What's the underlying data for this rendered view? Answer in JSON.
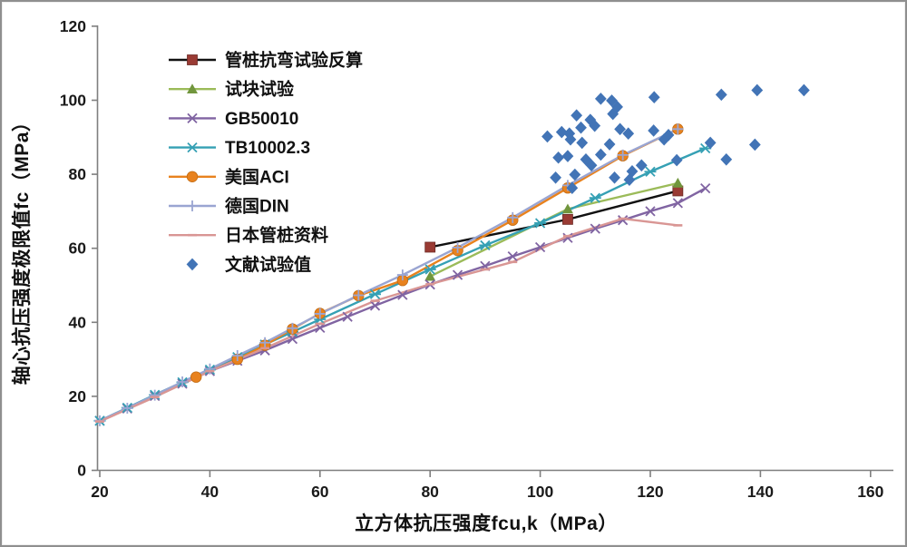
{
  "chart_data": {
    "type": "line",
    "title": "",
    "xlabel": "立方体抗压强度fcu,k（MPa）",
    "ylabel": "轴心抗压强度极限值fc（MPa）",
    "xlim": [
      20,
      160
    ],
    "ylim": [
      0,
      120
    ],
    "xticks": [
      20,
      40,
      60,
      80,
      100,
      120,
      140,
      160
    ],
    "yticks": [
      0,
      20,
      40,
      60,
      80,
      100,
      120
    ],
    "grid": false,
    "legend_position": "upper-left-inside",
    "axis_color": "#7f7f7f",
    "tick_label_color": "#1a1a1a",
    "series": [
      {
        "name": "管桩抗弯试验反算",
        "type": "line",
        "line_color": "#111111",
        "marker": "square",
        "marker_color": "#9a3b34",
        "points": [
          [
            80,
            60.3
          ],
          [
            105,
            67.8
          ],
          [
            125,
            75.5
          ]
        ]
      },
      {
        "name": "试块试验",
        "type": "line",
        "line_color": "#9bbb59",
        "marker": "triangle",
        "marker_color": "#71963d",
        "points": [
          [
            80,
            52.4
          ],
          [
            105,
            70.6
          ],
          [
            125,
            77.6
          ]
        ]
      },
      {
        "name": "GB50010",
        "type": "line",
        "line_color": "#8064a2",
        "marker": "x",
        "marker_color": "#8064a2",
        "points": [
          [
            20,
            13.4
          ],
          [
            25,
            16.7
          ],
          [
            30,
            20.1
          ],
          [
            35,
            23.4
          ],
          [
            40,
            26.8
          ],
          [
            45,
            29.6
          ],
          [
            50,
            32.4
          ],
          [
            55,
            35.5
          ],
          [
            60,
            38.5
          ],
          [
            65,
            41.5
          ],
          [
            70,
            44.5
          ],
          [
            75,
            47.4
          ],
          [
            80,
            50.2
          ],
          [
            85,
            52.8
          ],
          [
            90,
            55.2
          ],
          [
            95,
            57.8
          ],
          [
            100,
            60.3
          ],
          [
            105,
            62.8
          ],
          [
            110,
            65.3
          ],
          [
            115,
            67.6
          ],
          [
            120,
            70.0
          ],
          [
            125,
            72.2
          ],
          [
            130,
            76.2
          ]
        ]
      },
      {
        "name": "TB10002.3",
        "type": "line",
        "line_color": "#35a0b4",
        "marker": "asterisk",
        "marker_color": "#35a0b4",
        "points": [
          [
            20,
            13.4
          ],
          [
            25,
            16.9
          ],
          [
            30,
            20.4
          ],
          [
            35,
            23.8
          ],
          [
            40,
            27.2
          ],
          [
            45,
            30.6
          ],
          [
            50,
            34.0
          ],
          [
            55,
            37.4
          ],
          [
            60,
            40.8
          ],
          [
            70,
            47.6
          ],
          [
            80,
            54.3
          ],
          [
            90,
            60.8
          ],
          [
            100,
            66.8
          ],
          [
            110,
            73.6
          ],
          [
            120,
            80.7
          ],
          [
            130,
            87.0
          ]
        ]
      },
      {
        "name": "美国ACI",
        "type": "line",
        "line_color": "#e8821e",
        "marker": "circle",
        "marker_color": "#e8821e",
        "points": [
          [
            37.5,
            25.2
          ],
          [
            45,
            30.0
          ],
          [
            50,
            33.8
          ],
          [
            55,
            38.2
          ],
          [
            60,
            42.4
          ],
          [
            67,
            47.2
          ],
          [
            75,
            51.3
          ],
          [
            85,
            59.4
          ],
          [
            95,
            67.6
          ],
          [
            105,
            76.3
          ],
          [
            115,
            85.0
          ],
          [
            125,
            92.2
          ]
        ]
      },
      {
        "name": "德国DIN",
        "type": "line",
        "line_color": "#9aa5d2",
        "marker": "plus",
        "marker_color": "#9aa5d2",
        "points": [
          [
            20,
            13.4
          ],
          [
            25,
            16.8
          ],
          [
            30,
            20.3
          ],
          [
            35,
            23.9
          ],
          [
            40,
            27.4
          ],
          [
            45,
            31.0
          ],
          [
            50,
            34.5
          ],
          [
            55,
            38.4
          ],
          [
            60,
            42.3
          ],
          [
            67,
            47.3
          ],
          [
            75,
            52.8
          ],
          [
            85,
            60.2
          ],
          [
            95,
            68.3
          ],
          [
            105,
            77.0
          ],
          [
            115,
            85.2
          ],
          [
            125,
            92.2
          ]
        ]
      },
      {
        "name": "日本管桩资料",
        "type": "line",
        "line_color": "#d99694",
        "marker": "dash",
        "marker_color": "#d99694",
        "points": [
          [
            20,
            13.2
          ],
          [
            30,
            19.8
          ],
          [
            40,
            26.8
          ],
          [
            50,
            33.0
          ],
          [
            60,
            39.6
          ],
          [
            70,
            45.8
          ],
          [
            80,
            50.3
          ],
          [
            90,
            54.3
          ],
          [
            95,
            56.3
          ],
          [
            105,
            63.3
          ],
          [
            115,
            68.0
          ],
          [
            125,
            66.2
          ]
        ]
      },
      {
        "name": "文献试验值",
        "type": "scatter",
        "marker": "diamond",
        "marker_color": "#4274b6",
        "points": [
          [
            101.3,
            90.2
          ],
          [
            103.9,
            91.4
          ],
          [
            105.3,
            91.0
          ],
          [
            105.5,
            89.4
          ],
          [
            107.4,
            92.6
          ],
          [
            107.6,
            88.5
          ],
          [
            109.1,
            94.7
          ],
          [
            106.6,
            95.9
          ],
          [
            111,
            100.4
          ],
          [
            113,
            99.9
          ],
          [
            120.7,
            100.8
          ],
          [
            113.2,
            96.3
          ],
          [
            114,
            98.2
          ],
          [
            109.9,
            93.1
          ],
          [
            112.6,
            88.1
          ],
          [
            114.5,
            92.2
          ],
          [
            116,
            91.0
          ],
          [
            120.6,
            91.8
          ],
          [
            122.5,
            89.4
          ],
          [
            123.3,
            90.6
          ],
          [
            103.3,
            84.5
          ],
          [
            105,
            84.9
          ],
          [
            108.3,
            84.0
          ],
          [
            109.3,
            82.4
          ],
          [
            111,
            85.3
          ],
          [
            116.7,
            80.8
          ],
          [
            118.4,
            82.4
          ],
          [
            106.3,
            79.9
          ],
          [
            102.8,
            79.1
          ],
          [
            113.5,
            79.1
          ],
          [
            116.2,
            78.5
          ],
          [
            105.8,
            76.3
          ],
          [
            124.8,
            83.8
          ],
          [
            130.9,
            88.5
          ],
          [
            133.8,
            84.0
          ],
          [
            139,
            88.0
          ],
          [
            132.9,
            101.5
          ],
          [
            139.4,
            102.7
          ],
          [
            147.9,
            102.7
          ]
        ]
      }
    ]
  }
}
